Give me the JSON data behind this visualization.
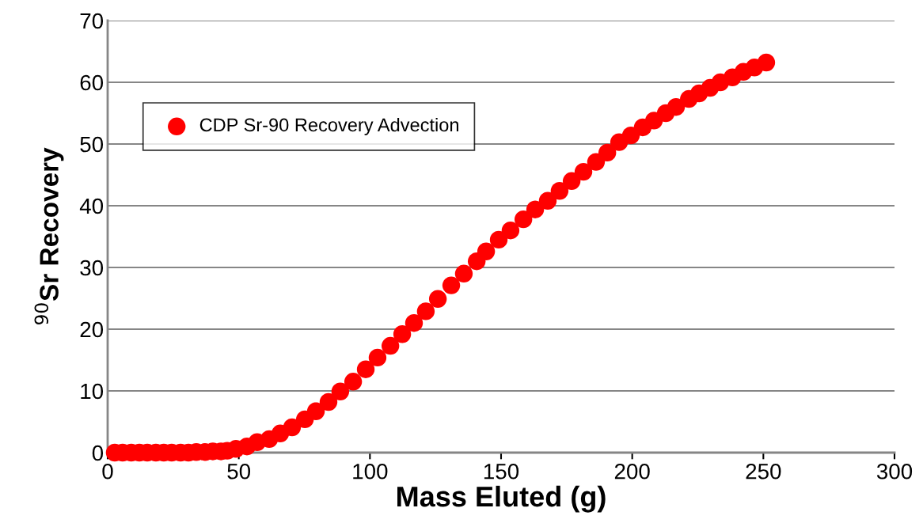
{
  "chart_data": {
    "type": "scatter",
    "xlabel": "Mass Eluted (g)",
    "ylabel": "$^{90}$Sr Recovery",
    "xlim": [
      0,
      300
    ],
    "xticks": [
      0,
      50,
      100,
      150,
      200,
      250,
      300
    ],
    "ylim": [
      0,
      70
    ],
    "yticks": [
      0,
      10,
      20,
      30,
      40,
      50,
      60,
      70
    ],
    "grid": "y",
    "legend": "top left",
    "marker": "circle",
    "series": [
      {
        "name": "CDP Sr-90 Recovery Advection",
        "color": "#ff0000",
        "x": [
          2.7,
          5.7,
          9.0,
          12.1,
          15.1,
          18.4,
          21.4,
          24.4,
          27.8,
          30.8,
          33.8,
          37.1,
          40.1,
          43.2,
          45.6,
          48.9,
          53.1,
          57.0,
          61.6,
          65.8,
          70.3,
          75.2,
          79.4,
          84.2,
          88.7,
          93.6,
          98.4,
          102.9,
          107.8,
          112.3,
          116.8,
          121.3,
          125.9,
          131.0,
          135.8,
          140.7,
          144.3,
          149.1,
          153.6,
          158.5,
          163.0,
          167.8,
          172.3,
          176.9,
          181.4,
          186.2,
          190.5,
          195.0,
          199.5,
          204.0,
          208.3,
          212.8,
          216.7,
          221.6,
          225.5,
          229.7,
          233.6,
          238.2,
          242.4,
          246.6,
          251.1
        ],
        "values": [
          0,
          0,
          0,
          0,
          0,
          0,
          0,
          0,
          0,
          0,
          0.1,
          0.1,
          0.2,
          0.2,
          0.3,
          0.6,
          1.0,
          1.7,
          2.2,
          3.1,
          4.1,
          5.4,
          6.7,
          8.2,
          9.9,
          11.5,
          13.5,
          15.4,
          17.3,
          19.2,
          21.0,
          22.9,
          24.9,
          27.1,
          29.0,
          31.0,
          32.6,
          34.5,
          36.0,
          37.8,
          39.4,
          40.8,
          42.4,
          44.0,
          45.5,
          47.1,
          48.6,
          50.3,
          51.4,
          52.7,
          53.8,
          55.0,
          56.0,
          57.3,
          58.2,
          59.1,
          60.0,
          60.8,
          61.7,
          62.4,
          63.2
        ]
      }
    ]
  }
}
